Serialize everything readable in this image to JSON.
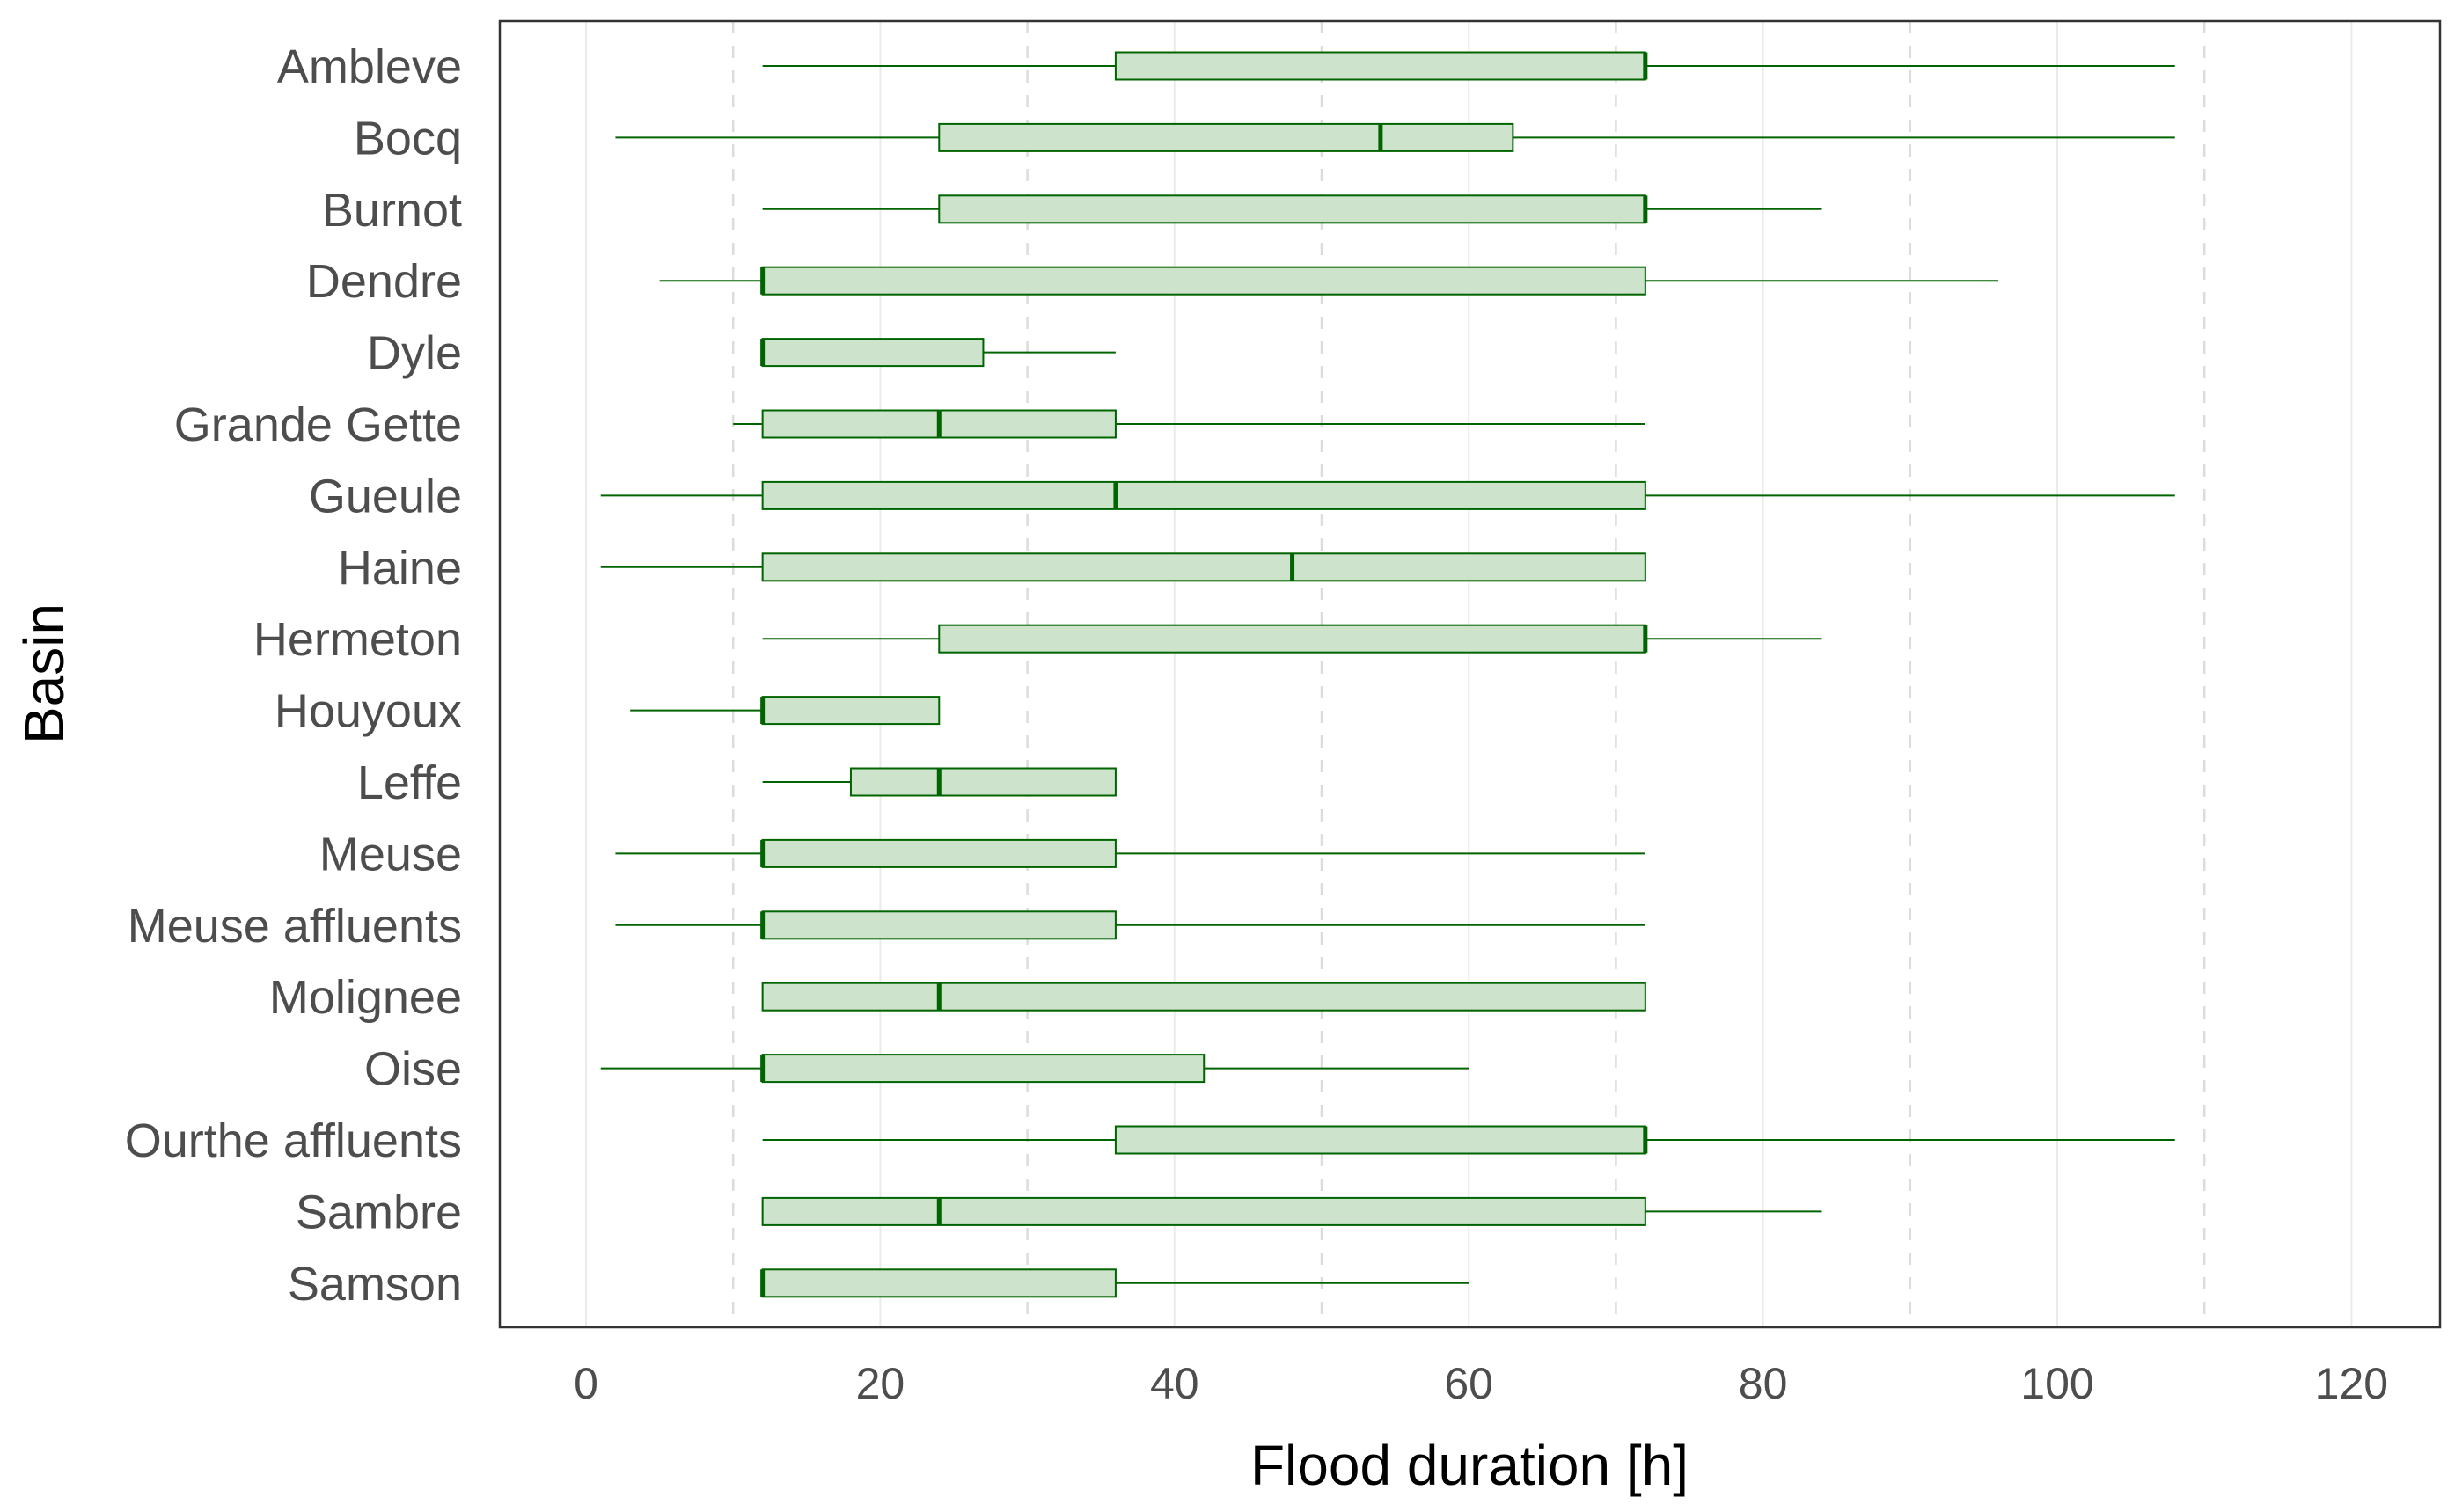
{
  "chart_data": {
    "type": "boxplot",
    "orientation": "horizontal",
    "xlabel": "Flood duration [h]",
    "ylabel": "Basin",
    "xlim": [
      -6,
      126
    ],
    "x_ticks": [
      0,
      20,
      40,
      60,
      80,
      100,
      120
    ],
    "x_ticks_labels": [
      "0",
      "20",
      "40",
      "60",
      "80",
      "100",
      "120"
    ],
    "minor_dashed_gridlines": [
      10,
      30,
      50,
      70,
      90,
      110
    ],
    "grid": true,
    "box_fill": "#cde3cb",
    "line_color": "#006400",
    "categories": [
      "Ambleve",
      "Bocq",
      "Burnot",
      "Dendre",
      "Dyle",
      "Grande Gette",
      "Gueule",
      "Haine",
      "Hermeton",
      "Houyoux",
      "Leffe",
      "Meuse",
      "Meuse affluents",
      "Molignee",
      "Oise",
      "Ourthe affluents",
      "Sambre",
      "Samson"
    ],
    "boxes": [
      {
        "min": 12,
        "q1": 36,
        "median": 72,
        "q3": 72,
        "max": 108
      },
      {
        "min": 2,
        "q1": 24,
        "median": 54,
        "q3": 63,
        "max": 108
      },
      {
        "min": 12,
        "q1": 24,
        "median": 72,
        "q3": 72,
        "max": 84
      },
      {
        "min": 5,
        "q1": 12,
        "median": 12,
        "q3": 72,
        "max": 96
      },
      {
        "min": 12,
        "q1": 12,
        "median": 12,
        "q3": 27,
        "max": 36
      },
      {
        "min": 10,
        "q1": 12,
        "median": 24,
        "q3": 36,
        "max": 72
      },
      {
        "min": 1,
        "q1": 12,
        "median": 36,
        "q3": 72,
        "max": 108
      },
      {
        "min": 1,
        "q1": 12,
        "median": 48,
        "q3": 72,
        "max": 72
      },
      {
        "min": 12,
        "q1": 24,
        "median": 72,
        "q3": 72,
        "max": 84
      },
      {
        "min": 3,
        "q1": 12,
        "median": 12,
        "q3": 24,
        "max": 24
      },
      {
        "min": 12,
        "q1": 18,
        "median": 24,
        "q3": 36,
        "max": 36
      },
      {
        "min": 2,
        "q1": 12,
        "median": 12,
        "q3": 36,
        "max": 72
      },
      {
        "min": 2,
        "q1": 12,
        "median": 12,
        "q3": 36,
        "max": 72
      },
      {
        "min": 12,
        "q1": 12,
        "median": 24,
        "q3": 72,
        "max": 72
      },
      {
        "min": 1,
        "q1": 12,
        "median": 12,
        "q3": 42,
        "max": 60
      },
      {
        "min": 12,
        "q1": 36,
        "median": 72,
        "q3": 72,
        "max": 108
      },
      {
        "min": 12,
        "q1": 12,
        "median": 24,
        "q3": 72,
        "max": 84
      },
      {
        "min": 12,
        "q1": 12,
        "median": 12,
        "q3": 36,
        "max": 60
      }
    ]
  }
}
